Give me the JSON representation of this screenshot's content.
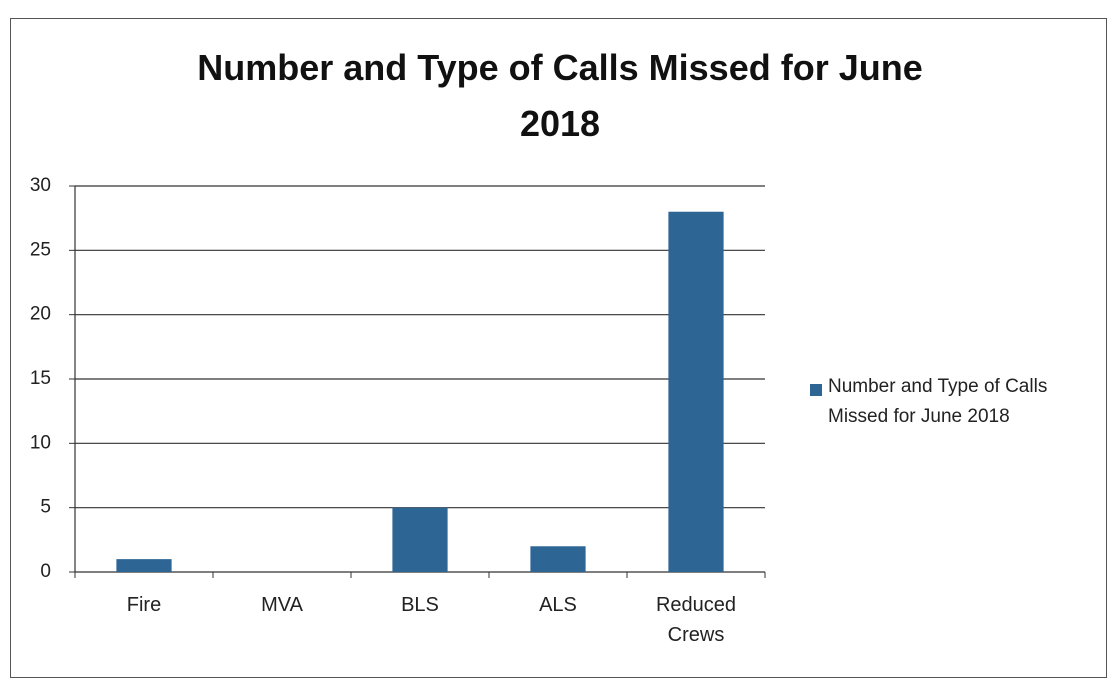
{
  "chart_data": {
    "type": "bar",
    "title": "Number and Type of Calls Missed for June 2018",
    "categories": [
      "Fire",
      "MVA",
      "BLS",
      "ALS",
      "Reduced Crews"
    ],
    "series": [
      {
        "name": "Number and Type of Calls Missed for June 2018",
        "color": "#2d6595",
        "values": [
          1,
          0,
          5,
          2,
          28
        ]
      }
    ],
    "ylim": [
      0,
      30
    ],
    "yticks": [
      0,
      5,
      10,
      15,
      20,
      25,
      30
    ],
    "grid": true,
    "legend": "right"
  }
}
